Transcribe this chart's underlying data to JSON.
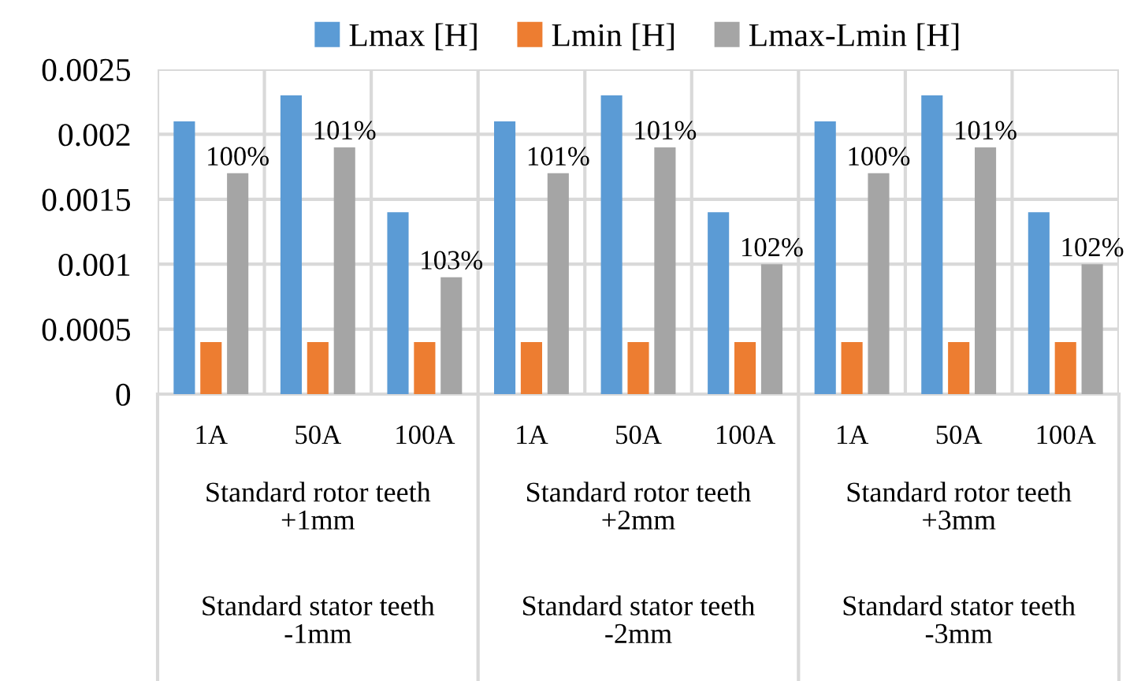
{
  "chart_data": {
    "type": "bar",
    "categories": [
      "1A",
      "50A",
      "100A",
      "1A",
      "50A",
      "100A",
      "1A",
      "50A",
      "100A"
    ],
    "series": [
      {
        "name": "Lmax [H]",
        "color": "#5b9bd5",
        "values": [
          0.0021,
          0.0023,
          0.0014,
          0.0021,
          0.0023,
          0.0014,
          0.0021,
          0.0023,
          0.0014
        ]
      },
      {
        "name": "Lmin [H]",
        "color": "#ed7d31",
        "values": [
          0.0004,
          0.0004,
          0.0004,
          0.0004,
          0.0004,
          0.0004,
          0.0004,
          0.0004,
          0.0004
        ]
      },
      {
        "name": "Lmax-Lmin [H]",
        "color": "#a5a5a5",
        "values": [
          0.0017,
          0.0019,
          0.0009,
          0.0017,
          0.0019,
          0.001,
          0.0017,
          0.0019,
          0.001
        ]
      }
    ],
    "ylim": [
      0,
      0.0025
    ],
    "yticks": [
      0,
      0.0005,
      0.001,
      0.0015,
      0.002,
      0.0025
    ],
    "annotations": [
      "Standard rotor teeth\n+1mm",
      "Standard rotor teeth\n+2mm",
      "Standard rotor teeth\n+3mm",
      "Standard stator teeth\n-1mm",
      "Standard stator teeth\n-2mm",
      "Standard stator teeth\n-3mm",
      "100%",
      "101%",
      "103%",
      "101%",
      "101%",
      "102%",
      "100%",
      "101%",
      "102%"
    ],
    "grid": true,
    "legend": "top"
  }
}
